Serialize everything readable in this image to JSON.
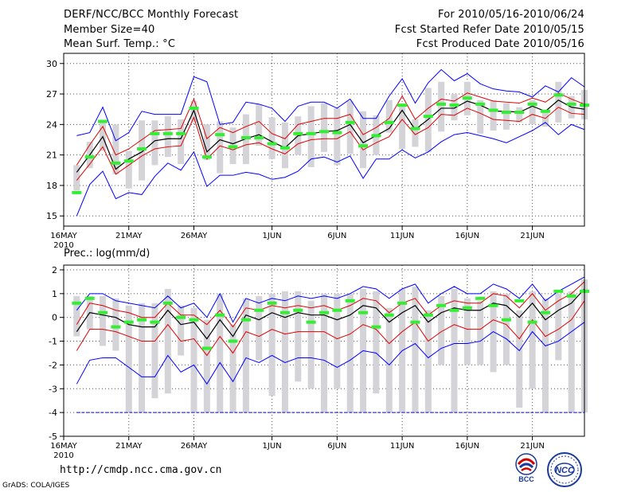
{
  "header": {
    "title": "DERF/NCC/BCC Monthly Forecast",
    "member_size": "Member Size=40",
    "variable": "Mean Surf. Temp.: °C",
    "forecast_range": "For 2010/05/16-2010/06/24",
    "start_date": "Fcst Started Refer Date 2010/05/15",
    "produced_date": "Fcst Produced Date 2010/05/16"
  },
  "footer": {
    "url": "http://cmdp.ncc.cma.gov.cn",
    "credit": "GrADS: COLA/IGES"
  },
  "logos": {
    "left": "BCC",
    "right": "NCC"
  },
  "colors": {
    "mean": "#000000",
    "spread_red": "#e00000",
    "extreme_blue": "#0000ff",
    "obs_green": "#33ee33",
    "member_box": "#d3d3d8",
    "grid": "#555555"
  },
  "chart_data": [
    {
      "type": "line",
      "title": "Mean Surf. Temp.: °C",
      "ylim": [
        14,
        31
      ],
      "yticks": [
        15,
        18,
        21,
        24,
        27,
        30
      ],
      "xlim": [
        0,
        40
      ],
      "xticks": [
        {
          "day": 0,
          "label": "16MAY",
          "sublabel": "2010"
        },
        {
          "day": 5,
          "label": "21MAY"
        },
        {
          "day": 10,
          "label": "26MAY"
        },
        {
          "day": 16,
          "label": "1JUN"
        },
        {
          "day": 21,
          "label": "6JUN"
        },
        {
          "day": 26,
          "label": "11JUN"
        },
        {
          "day": 31,
          "label": "16JUN"
        },
        {
          "day": 36,
          "label": "21JUN"
        }
      ],
      "x": [
        1,
        2,
        3,
        4,
        5,
        6,
        7,
        8,
        9,
        10,
        11,
        12,
        13,
        14,
        15,
        16,
        17,
        18,
        19,
        20,
        21,
        22,
        23,
        24,
        25,
        26,
        27,
        28,
        29,
        30,
        31,
        32,
        33,
        34,
        35,
        36,
        37,
        38,
        39,
        40
      ],
      "series": [
        {
          "name": "ensemble mean",
          "color": "#000000",
          "values": [
            19.3,
            21.0,
            22.8,
            19.6,
            20.6,
            21.3,
            22.4,
            22.6,
            22.6,
            25.4,
            21.3,
            22.5,
            22.1,
            22.6,
            23.0,
            22.3,
            21.7,
            22.9,
            23.1,
            23.3,
            23.4,
            24.0,
            22.2,
            22.9,
            23.6,
            25.4,
            23.5,
            24.5,
            25.6,
            25.6,
            26.3,
            25.9,
            25.3,
            25.3,
            25.2,
            25.8,
            25.3,
            26.4,
            25.7,
            25.5
          ]
        },
        {
          "name": "spread upper",
          "color": "#e00000",
          "values": [
            20.0,
            22.0,
            23.8,
            21.0,
            21.6,
            22.5,
            23.4,
            23.5,
            23.6,
            26.5,
            22.6,
            23.7,
            23.2,
            23.8,
            24.3,
            23.1,
            22.6,
            24.0,
            24.3,
            24.6,
            24.6,
            25.0,
            23.0,
            23.7,
            24.6,
            26.8,
            24.5,
            25.6,
            26.5,
            26.3,
            27.1,
            26.7,
            26.3,
            26.2,
            26.1,
            26.6,
            26.2,
            27.1,
            26.5,
            26.0
          ]
        },
        {
          "name": "spread lower",
          "color": "#e00000",
          "values": [
            18.5,
            20.1,
            21.8,
            19.1,
            20.0,
            20.9,
            21.6,
            21.8,
            21.9,
            24.7,
            20.6,
            21.9,
            21.5,
            22.0,
            22.2,
            21.6,
            21.1,
            22.1,
            22.5,
            22.6,
            22.6,
            23.3,
            21.5,
            22.2,
            22.8,
            24.5,
            23.0,
            23.7,
            25.0,
            24.9,
            25.6,
            25.1,
            24.5,
            24.4,
            24.3,
            25.0,
            24.6,
            25.7,
            25.1,
            25.0
          ]
        },
        {
          "name": "member max",
          "color": "#0000ff",
          "values": [
            22.9,
            23.2,
            25.7,
            22.4,
            23.2,
            25.3,
            25.0,
            25.0,
            25.0,
            28.7,
            28.2,
            24.0,
            24.2,
            26.2,
            26.0,
            25.6,
            24.3,
            25.8,
            26.2,
            26.2,
            25.6,
            26.5,
            24.6,
            24.6,
            26.8,
            28.5,
            26.1,
            28.1,
            29.4,
            28.3,
            29.0,
            28.0,
            27.5,
            27.3,
            27.2,
            26.7,
            27.8,
            27.2,
            28.6,
            27.7
          ]
        },
        {
          "name": "member min",
          "color": "#0000ff",
          "values": [
            15.0,
            18.1,
            19.4,
            16.7,
            17.3,
            17.1,
            18.9,
            20.2,
            19.5,
            21.3,
            17.9,
            19.0,
            19.0,
            19.3,
            19.1,
            18.6,
            18.8,
            19.4,
            20.6,
            20.8,
            20.3,
            20.9,
            18.7,
            20.6,
            20.6,
            21.5,
            20.7,
            21.3,
            22.3,
            23.0,
            23.2,
            22.9,
            22.6,
            22.2,
            22.8,
            23.4,
            24.2,
            23.0,
            24.0,
            23.5
          ]
        }
      ],
      "boxes": {
        "name": "member range bars",
        "high": [
          20.0,
          22.3,
          24.4,
          24.0,
          21.4,
          24.4,
          24.4,
          24.8,
          24.5,
          26.3,
          24.0,
          24.3,
          23.7,
          25.0,
          26.0,
          24.7,
          24.2,
          24.8,
          25.8,
          26.1,
          25.6,
          26.3,
          25.3,
          24.9,
          26.4,
          25.8,
          24.5,
          27.6,
          28.2,
          27.0,
          28.2,
          26.4,
          26.4,
          26.1,
          25.7,
          26.4,
          25.2,
          28.2,
          26.8,
          27.4
        ],
        "low": [
          17.5,
          19.7,
          21.4,
          19.1,
          17.7,
          18.5,
          20.0,
          20.8,
          20.1,
          24.2,
          20.5,
          19.2,
          20.1,
          20.1,
          21.9,
          20.6,
          19.7,
          21.0,
          19.8,
          21.3,
          20.0,
          21.1,
          19.7,
          21.0,
          23.2,
          21.6,
          21.8,
          21.3,
          23.3,
          24.4,
          24.9,
          23.1,
          23.4,
          23.5,
          24.2,
          24.0,
          23.8,
          24.2,
          24.6,
          24.5
        ]
      },
      "observed": {
        "name": "observation",
        "color": "#33ee33",
        "values": [
          17.3,
          20.8,
          24.3,
          20.2,
          20.4,
          21.6,
          23.1,
          23.1,
          23.1,
          25.6,
          20.8,
          23.0,
          21.8,
          22.7,
          22.7,
          22.1,
          21.7,
          23.1,
          23.1,
          23.3,
          23.2,
          24.2,
          21.9,
          22.9,
          24.2,
          25.9,
          23.6,
          24.8,
          26.0,
          25.9,
          26.6,
          26.0,
          25.4,
          25.2,
          25.2,
          26.0,
          25.3,
          26.9,
          26.0,
          25.9
        ]
      }
    },
    {
      "type": "line",
      "title": "Prec.: log(mm/d)",
      "ylim": [
        -5,
        2.2
      ],
      "yticks": [
        -5,
        -4,
        -3,
        -2,
        -1,
        0,
        1,
        2
      ],
      "xlim": [
        0,
        40
      ],
      "xticks": [
        {
          "day": 0,
          "label": "16MAY",
          "sublabel": "2010"
        },
        {
          "day": 5,
          "label": "21MAY"
        },
        {
          "day": 10,
          "label": "26MAY"
        },
        {
          "day": 16,
          "label": "1JUN"
        },
        {
          "day": 21,
          "label": "6JUN"
        },
        {
          "day": 26,
          "label": "11JUN"
        },
        {
          "day": 31,
          "label": "16JUN"
        },
        {
          "day": 36,
          "label": "21JUN"
        }
      ],
      "x": [
        1,
        2,
        3,
        4,
        5,
        6,
        7,
        8,
        9,
        10,
        11,
        12,
        13,
        14,
        15,
        16,
        17,
        18,
        19,
        20,
        21,
        22,
        23,
        24,
        25,
        26,
        27,
        28,
        29,
        30,
        31,
        32,
        33,
        34,
        35,
        36,
        37,
        38,
        39,
        40
      ],
      "series": [
        {
          "name": "ensemble mean",
          "color": "#000000",
          "values": [
            -0.6,
            0.2,
            0.1,
            0.0,
            -0.3,
            -0.4,
            -0.4,
            0.3,
            -0.3,
            -0.2,
            -0.9,
            -0.1,
            -0.8,
            0.1,
            -0.1,
            0.2,
            0.0,
            0.2,
            0.1,
            0.1,
            -0.1,
            0.1,
            0.5,
            0.4,
            -0.2,
            0.2,
            0.5,
            -0.2,
            0.2,
            0.4,
            0.3,
            0.3,
            0.6,
            0.5,
            0.0,
            0.6,
            -0.1,
            0.3,
            0.6,
            1.2
          ]
        },
        {
          "name": "spread upper",
          "color": "#e00000",
          "values": [
            -0.3,
            0.6,
            0.5,
            0.3,
            0.2,
            0.0,
            0.0,
            0.6,
            0.1,
            0.1,
            -0.3,
            0.3,
            -0.4,
            0.4,
            0.3,
            0.5,
            0.4,
            0.5,
            0.4,
            0.5,
            0.3,
            0.5,
            0.8,
            0.7,
            0.2,
            0.6,
            0.8,
            0.1,
            0.5,
            0.7,
            0.6,
            0.6,
            1.0,
            0.9,
            0.4,
            1.0,
            0.3,
            0.7,
            1.0,
            1.5
          ]
        },
        {
          "name": "spread lower",
          "color": "#e00000",
          "values": [
            -1.4,
            -0.5,
            -0.5,
            -0.6,
            -0.8,
            -1.0,
            -1.0,
            -0.3,
            -1.0,
            -0.9,
            -1.6,
            -0.8,
            -1.5,
            -0.6,
            -0.8,
            -0.5,
            -0.7,
            -0.6,
            -0.6,
            -0.6,
            -0.9,
            -0.7,
            -0.3,
            -0.5,
            -1.1,
            -0.6,
            -0.2,
            -1.0,
            -0.6,
            -0.3,
            -0.5,
            -0.5,
            -0.1,
            -0.3,
            -0.9,
            -0.1,
            -0.8,
            -0.5,
            -0.1,
            0.7
          ]
        },
        {
          "name": "member max",
          "color": "#0000ff",
          "values": [
            0.3,
            1.0,
            1.0,
            0.7,
            0.6,
            0.5,
            0.4,
            0.9,
            0.4,
            0.6,
            0.0,
            1.0,
            -0.2,
            0.8,
            0.6,
            0.8,
            0.7,
            0.9,
            0.8,
            0.9,
            0.8,
            1.0,
            1.3,
            1.2,
            0.8,
            1.2,
            1.4,
            0.6,
            1.0,
            1.3,
            1.0,
            1.0,
            1.4,
            1.2,
            0.8,
            1.4,
            0.7,
            1.1,
            1.4,
            1.7
          ]
        },
        {
          "name": "member min",
          "color": "#0000ff",
          "values": [
            -2.8,
            -1.8,
            -1.7,
            -1.7,
            -2.1,
            -2.5,
            -2.5,
            -1.6,
            -2.3,
            -2.0,
            -2.8,
            -1.9,
            -2.7,
            -1.7,
            -1.9,
            -1.6,
            -1.9,
            -1.7,
            -1.7,
            -1.8,
            -2.1,
            -1.8,
            -1.4,
            -1.5,
            -2.0,
            -1.4,
            -1.1,
            -1.7,
            -1.3,
            -1.1,
            -1.1,
            -1.0,
            -0.6,
            -0.9,
            -1.4,
            -0.6,
            -1.2,
            -1.0,
            -0.6,
            -0.2
          ]
        },
        {
          "name": "lower bound",
          "color": "#0000ff",
          "values": [
            -4,
            -4,
            -4,
            -4,
            -4,
            -4,
            -4,
            -4,
            -4,
            -4,
            -4,
            -4,
            -4,
            -4,
            -4,
            -4,
            -4,
            -4,
            -4,
            -4,
            -4,
            -4,
            -4,
            -4,
            -4,
            -4,
            -4,
            -4,
            -4,
            -4,
            -4,
            -4,
            -4,
            -4,
            -4,
            -4,
            -4,
            -4,
            -4,
            -4
          ]
        }
      ],
      "boxes": {
        "name": "member range bars",
        "high": [
          0.9,
          0.9,
          0.9,
          0.8,
          0.5,
          0.6,
          0.6,
          1.2,
          0.5,
          0.4,
          -0.1,
          1.0,
          -0.3,
          0.8,
          0.9,
          1.0,
          1.1,
          1.1,
          0.7,
          1.0,
          1.0,
          1.0,
          1.2,
          1.1,
          0.4,
          1.2,
          1.3,
          0.3,
          0.9,
          1.2,
          0.8,
          0.7,
          1.1,
          1.0,
          0.3,
          1.1,
          0.8,
          1.0,
          1.1,
          1.6
        ],
        "low": [
          -0.8,
          -0.5,
          -1.2,
          -1.4,
          -4.0,
          -4.0,
          -3.4,
          -3.2,
          -1.6,
          -4.0,
          -4.0,
          -4.0,
          -4.0,
          -4.0,
          -1.8,
          -3.3,
          -4.0,
          -2.7,
          -3.0,
          -4.0,
          -3.0,
          -4.0,
          -4.0,
          -3.2,
          -4.0,
          -4.0,
          -4.0,
          -4.0,
          -2.0,
          -4.0,
          -2.0,
          -2.0,
          -2.3,
          -2.0,
          -3.8,
          -3.0,
          -4.0,
          -1.8,
          -4.0,
          -4.0
        ]
      },
      "observed": {
        "name": "observation",
        "color": "#33ee33",
        "values": [
          0.6,
          0.8,
          0.2,
          -0.4,
          -0.2,
          -0.1,
          -0.2,
          0.6,
          0.0,
          -0.1,
          -1.3,
          0.1,
          -1.0,
          -0.1,
          0.3,
          0.6,
          0.2,
          0.3,
          -0.2,
          0.2,
          0.3,
          0.7,
          0.2,
          -0.4,
          0.1,
          0.6,
          -0.2,
          0.1,
          0.5,
          0.3,
          0.4,
          0.8,
          0.5,
          -0.1,
          0.7,
          -0.2,
          0.2,
          1.1,
          0.9,
          1.1
        ]
      }
    }
  ]
}
